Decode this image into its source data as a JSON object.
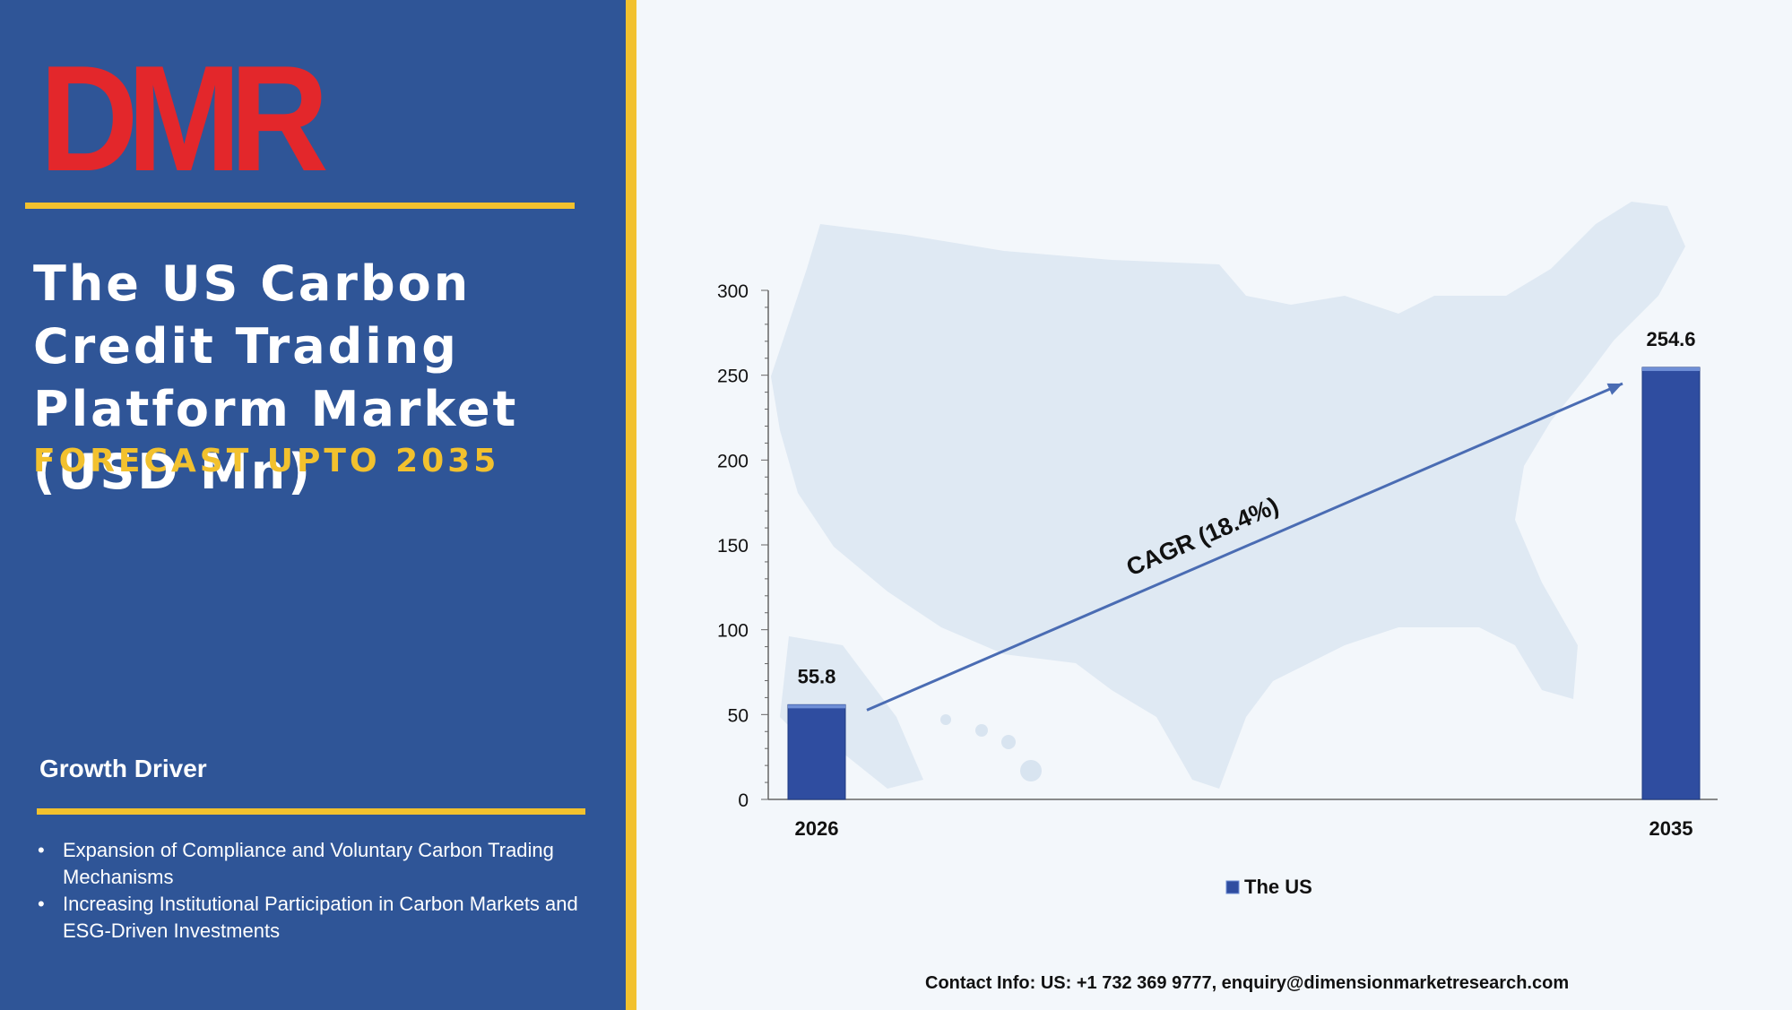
{
  "logo": {
    "text": "DMR"
  },
  "panel": {
    "title": "The US Carbon Credit Trading Platform Market (USD Mn)",
    "subtitle": "FORECAST UPTO 2035",
    "driver_heading": "Growth Driver",
    "drivers": [
      "Expansion of Compliance and Voluntary Carbon Trading Mechanisms",
      "Increasing Institutional Participation in Carbon Markets and ESG-Driven Investments"
    ]
  },
  "chart_data": {
    "type": "bar",
    "categories": [
      "2026",
      "2035"
    ],
    "series": [
      {
        "name": "The US",
        "values": [
          55.8,
          254.6
        ]
      }
    ],
    "data_labels": [
      "55.8",
      "254.6"
    ],
    "ylim": [
      0,
      300
    ],
    "yticks": [
      0,
      50,
      100,
      150,
      200,
      250,
      300
    ],
    "annotation": "CAGR (18.4%)",
    "legend": "bottom",
    "grid": false
  },
  "colors": {
    "panel": "#2f5597",
    "accent": "#f2c12e",
    "bar": "#2f4da0",
    "arrow": "#4a6cb3"
  },
  "contact": "Contact Info: US: +1 732 369 9777, enquiry@dimensionmarketresearch.com"
}
